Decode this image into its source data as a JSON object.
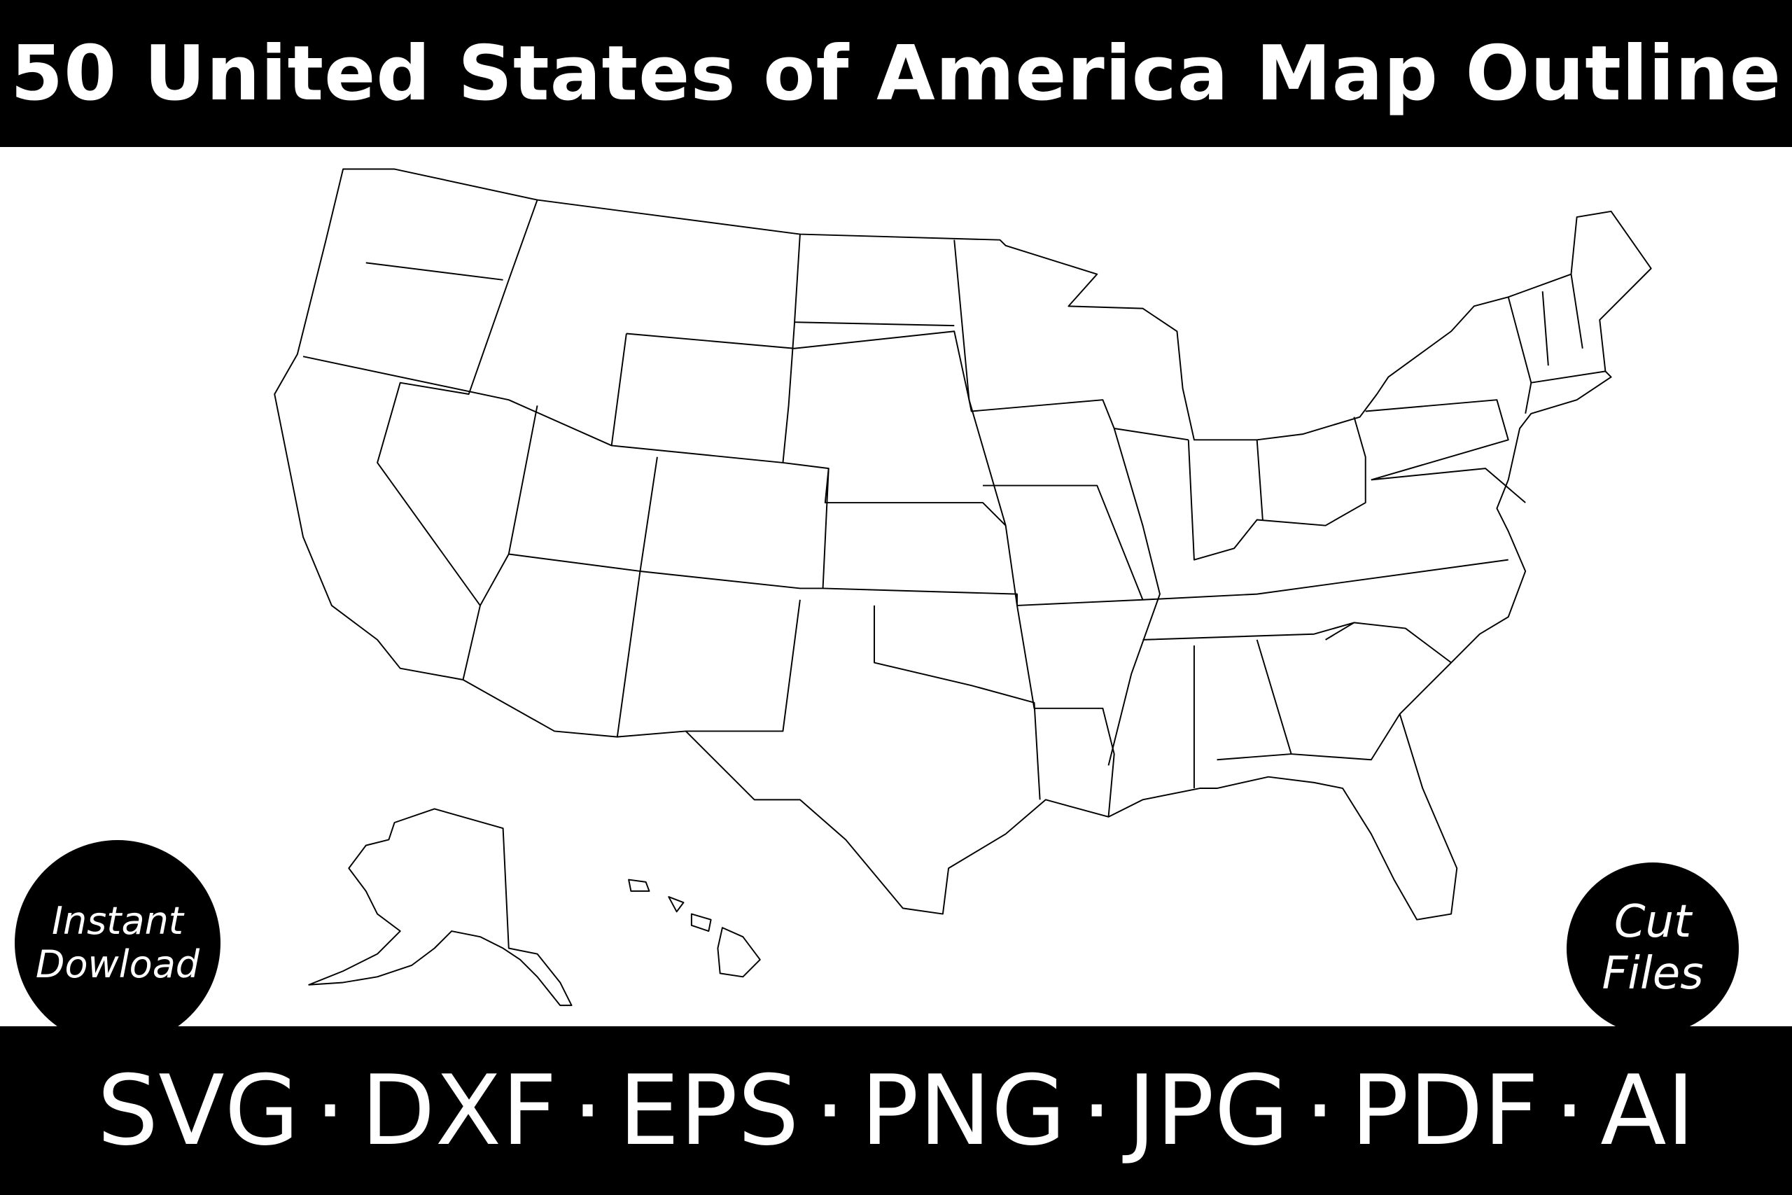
{
  "header": {
    "title": "50 United States of America Map Outline"
  },
  "badges": {
    "left": {
      "line1": "Instant",
      "line2": "Dowload"
    },
    "right": {
      "line1": "Cut",
      "line2": "Files"
    }
  },
  "footer": {
    "formats": [
      "SVG",
      "DXF",
      "EPS",
      "PNG",
      "JPG",
      "PDF",
      "AI"
    ]
  },
  "colors": {
    "background": "#ffffff",
    "bars": "#000000",
    "text": "#ffffff",
    "outline": "#000000"
  }
}
